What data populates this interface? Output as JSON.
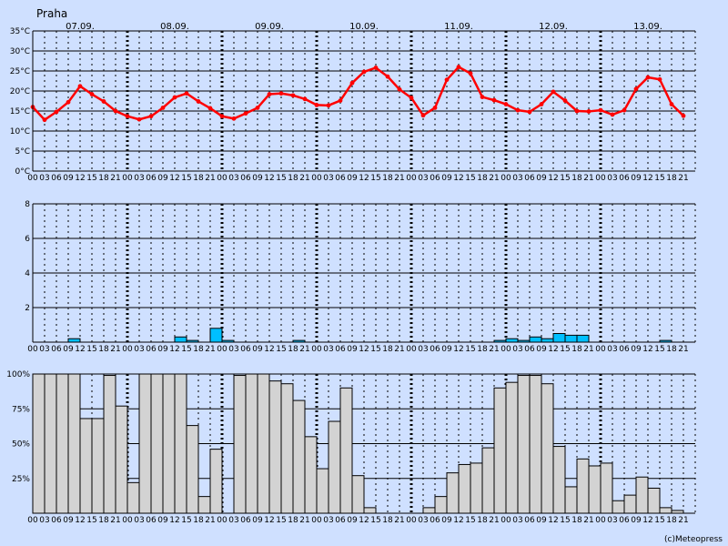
{
  "title": "Praha",
  "credit": "(c)Meteopress",
  "days": [
    "07.09.",
    "08.09.",
    "09.09.",
    "10.09.",
    "11.09.",
    "12.09.",
    "13.09."
  ],
  "hours": [
    "00",
    "03",
    "06",
    "09",
    "12",
    "15",
    "18",
    "21"
  ],
  "colors": {
    "background": "#cfe0ff",
    "temperature": "#ff0000",
    "precipitation": "#00bfff",
    "cloud": "#d3d3d3"
  },
  "chart_data": [
    {
      "type": "line",
      "name": "temperature",
      "ylim": [
        0,
        35
      ],
      "yticks": [
        "0°C",
        "5°C",
        "10°C",
        "15°C",
        "20°C",
        "25°C",
        "30°C",
        "35°C"
      ],
      "x_unit": "3-hour steps from 07.09. 00",
      "values": [
        16,
        12.8,
        14.8,
        17.2,
        21.2,
        19.2,
        17.4,
        15,
        13.7,
        12.9,
        13.7,
        15.8,
        18.4,
        19.4,
        17.4,
        15.7,
        13.7,
        13.1,
        14.4,
        15.8,
        19.2,
        19.4,
        18.9,
        18,
        16.5,
        16.4,
        17.6,
        22,
        24.8,
        25.8,
        23.6,
        20.4,
        18.3,
        13.9,
        15.8,
        22.8,
        26,
        24.4,
        18.5,
        17.7,
        16.7,
        15.2,
        14.8,
        16.7,
        19.8,
        17.6,
        15,
        14.9,
        15.2,
        14.1,
        15.2,
        20.5,
        23.4,
        22.9,
        16.7,
        13.8
      ]
    },
    {
      "type": "bar",
      "name": "precipitation",
      "ylim": [
        0,
        8
      ],
      "yticks": [
        "2",
        "4",
        "6",
        "8"
      ],
      "x_unit": "3-hour steps from 07.09. 00",
      "values": [
        0,
        0,
        0,
        0.2,
        0,
        0,
        0,
        0,
        0,
        0,
        0,
        0,
        0.3,
        0.1,
        0,
        0.8,
        0.1,
        0,
        0,
        0,
        0,
        0,
        0.1,
        0,
        0,
        0,
        0,
        0,
        0,
        0,
        0,
        0,
        0,
        0,
        0,
        0,
        0,
        0,
        0,
        0.1,
        0.2,
        0.1,
        0.3,
        0.2,
        0.5,
        0.4,
        0.4,
        0,
        0,
        0,
        0,
        0,
        0,
        0.1,
        0,
        0
      ]
    },
    {
      "type": "bar",
      "name": "cloud",
      "ylim": [
        0,
        100
      ],
      "yticks": [
        "25%",
        "50%",
        "75%",
        "100%"
      ],
      "x_unit": "3-hour steps from 07.09. 00",
      "values": [
        100,
        100,
        100,
        100,
        68,
        68,
        99,
        77,
        22,
        100,
        100,
        100,
        100,
        63,
        12,
        46,
        0,
        99,
        100,
        100,
        95,
        93,
        81,
        55,
        32,
        66,
        90,
        27,
        4,
        0,
        0,
        0,
        0,
        4,
        12,
        29,
        35,
        36,
        47,
        90,
        94,
        99,
        99,
        93,
        48,
        19,
        39,
        34,
        36,
        9,
        13,
        26,
        18,
        4,
        2,
        0
      ]
    }
  ]
}
